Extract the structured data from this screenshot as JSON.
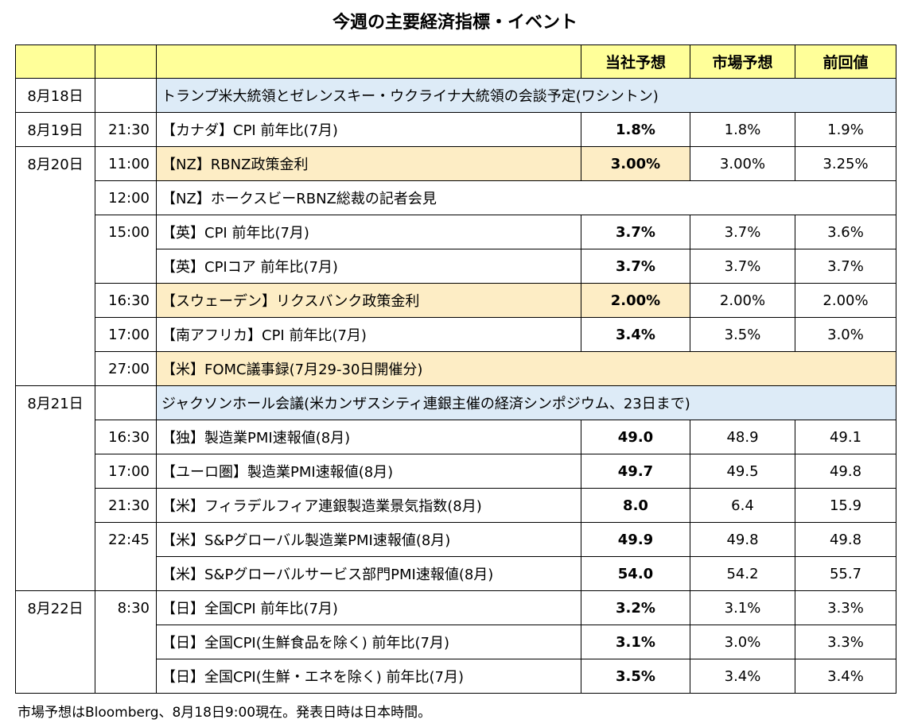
{
  "title": "今週の主要経済指標・イベント",
  "headers": {
    "forecast": "当社予想",
    "market": "市場予想",
    "previous": "前回値"
  },
  "rows": [
    {
      "date": "8月18日",
      "time": "",
      "event": "トランプ米大統領とゼレンスキー・ウクライナ大統領の会談予定(ワシントン)",
      "forecast": "",
      "market": "",
      "previous": ""
    },
    {
      "date": "8月19日",
      "time": "21:30",
      "event": "【カナダ】CPI 前年比(7月)",
      "forecast": "1.8%",
      "market": "1.8%",
      "previous": "1.9%"
    },
    {
      "date": "8月20日",
      "time": "11:00",
      "event": "【NZ】RBNZ政策金利",
      "forecast": "3.00%",
      "market": "3.00%",
      "previous": "3.25%"
    },
    {
      "date": "",
      "time": "12:00",
      "event": "【NZ】ホークスビーRBNZ総裁の記者会見",
      "forecast": "",
      "market": "",
      "previous": ""
    },
    {
      "date": "",
      "time": "15:00",
      "event": "【英】CPI 前年比(7月)",
      "forecast": "3.7%",
      "market": "3.7%",
      "previous": "3.6%"
    },
    {
      "date": "",
      "time": "",
      "event": "【英】CPIコア 前年比(7月)",
      "forecast": "3.7%",
      "market": "3.7%",
      "previous": "3.7%"
    },
    {
      "date": "",
      "time": "16:30",
      "event": "【スウェーデン】リクスバンク政策金利",
      "forecast": "2.00%",
      "market": "2.00%",
      "previous": "2.00%"
    },
    {
      "date": "",
      "time": "17:00",
      "event": "【南アフリカ】CPI 前年比(7月)",
      "forecast": "3.4%",
      "market": "3.5%",
      "previous": "3.0%"
    },
    {
      "date": "",
      "time": "27:00",
      "event": "【米】FOMC議事録(7月29-30日開催分)",
      "forecast": "",
      "market": "",
      "previous": ""
    },
    {
      "date": "8月21日",
      "time": "",
      "event": "ジャクソンホール会議(米カンザスシティ連銀主催の経済シンポジウム、23日まで)",
      "forecast": "",
      "market": "",
      "previous": ""
    },
    {
      "date": "",
      "time": "16:30",
      "event": "【独】製造業PMI速報値(8月)",
      "forecast": "49.0",
      "market": "48.9",
      "previous": "49.1"
    },
    {
      "date": "",
      "time": "17:00",
      "event": "【ユーロ圏】製造業PMI速報値(8月)",
      "forecast": "49.7",
      "market": "49.5",
      "previous": "49.8"
    },
    {
      "date": "",
      "time": "21:30",
      "event": "【米】フィラデルフィア連銀製造業景気指数(8月)",
      "forecast": "8.0",
      "market": "6.4",
      "previous": "15.9"
    },
    {
      "date": "",
      "time": "22:45",
      "event": "【米】S&Pグローバル製造業PMI速報値(8月)",
      "forecast": "49.9",
      "market": "49.8",
      "previous": "49.8"
    },
    {
      "date": "",
      "time": "",
      "event": "【米】S&Pグローバルサービス部門PMI速報値(8月)",
      "forecast": "54.0",
      "market": "54.2",
      "previous": "55.7"
    },
    {
      "date": "8月22日",
      "time": "8:30",
      "event": "【日】全国CPI 前年比(7月)",
      "forecast": "3.2%",
      "market": "3.1%",
      "previous": "3.3%"
    },
    {
      "date": "",
      "time": "",
      "event": "【日】全国CPI(生鮮食品を除く) 前年比(7月)",
      "forecast": "3.1%",
      "market": "3.0%",
      "previous": "3.3%"
    },
    {
      "date": "",
      "time": "",
      "event": "【日】全国CPI(生鮮・エネを除く) 前年比(7月)",
      "forecast": "3.5%",
      "market": "3.4%",
      "previous": "3.4%"
    }
  ],
  "footnote": "市場予想はBloomberg、8月18日9:00現在。発表日時は日本時間。",
  "colors": {
    "header_bg": "#ffff99",
    "highlight_orange": "#fdedc5",
    "highlight_blue": "#ddebf7"
  }
}
